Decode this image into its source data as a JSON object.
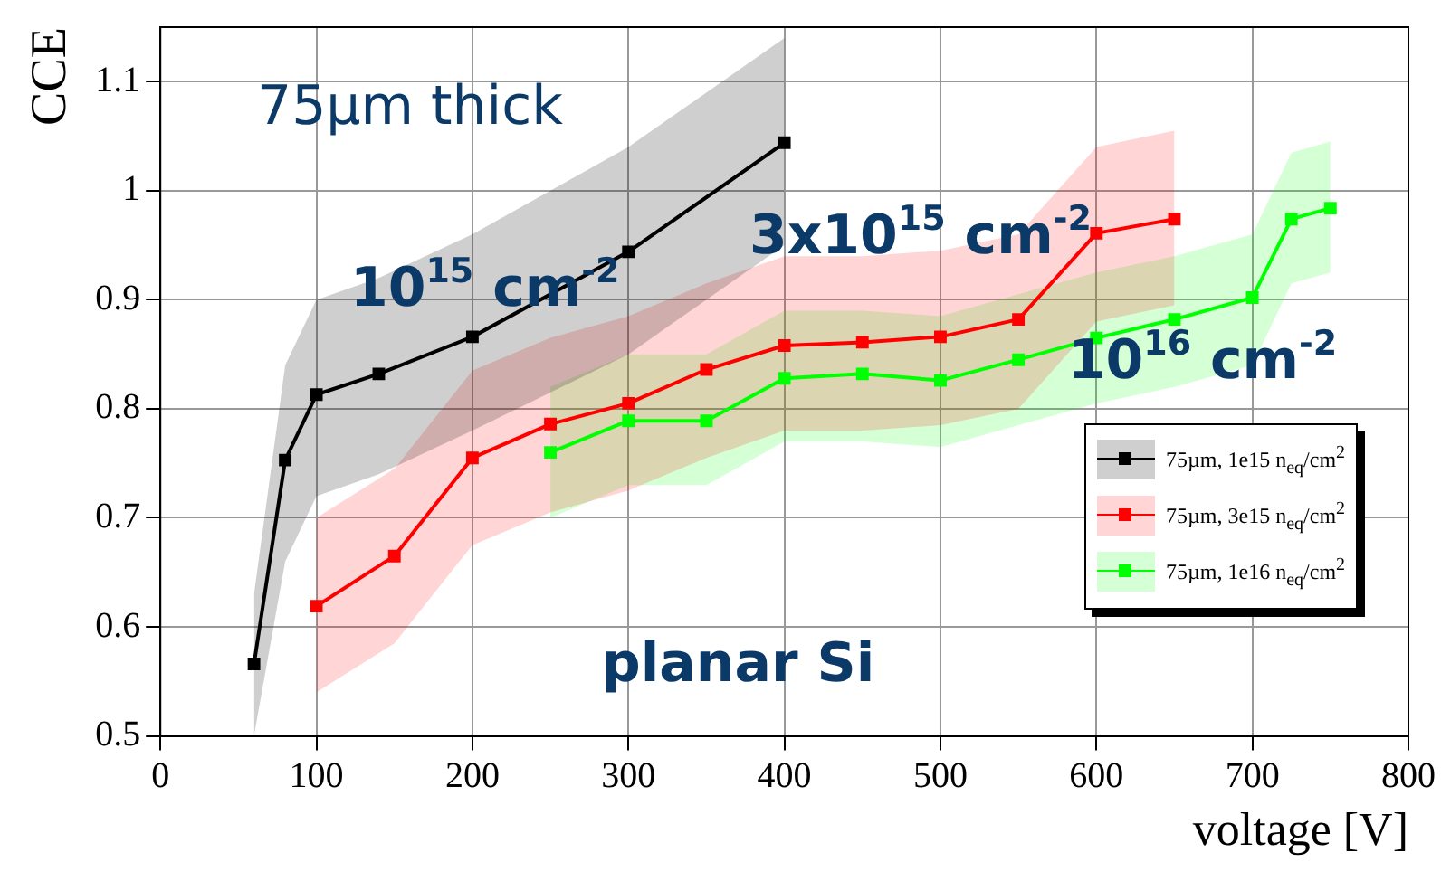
{
  "chart_data": {
    "type": "line",
    "xlabel": "voltage [V]",
    "ylabel": "CCE",
    "xlim": [
      0,
      800
    ],
    "xticks": [
      0,
      100,
      200,
      300,
      400,
      500,
      600,
      700,
      800
    ],
    "ylim": [
      0.5,
      1.15
    ],
    "yticks": [
      0.5,
      0.6,
      0.7,
      0.8,
      0.9,
      1,
      1.1
    ],
    "grid": true,
    "legend": "bottom right",
    "marker": "square",
    "line_style": "solid",
    "series": [
      {
        "name": "75µm, 1e15 n$_{eq}$/cm$^{2}$",
        "color": "#000000",
        "x": [
          60,
          80,
          100,
          140,
          200,
          300,
          400
        ],
        "values": [
          0.566,
          0.753,
          0.813,
          0.832,
          0.866,
          0.944,
          1.044
        ],
        "lower": [
          0.5,
          0.66,
          0.72,
          0.74,
          0.78,
          0.85,
          0.95
        ],
        "upper": [
          0.63,
          0.84,
          0.9,
          0.92,
          0.96,
          1.04,
          1.14
        ]
      },
      {
        "name": "75µm, 3e15 n$_{eq}$/cm$^{2}$",
        "color": "#ff0000",
        "x": [
          100,
          150,
          200,
          250,
          300,
          350,
          400,
          450,
          500,
          550,
          600,
          650
        ],
        "values": [
          0.619,
          0.665,
          0.755,
          0.786,
          0.805,
          0.836,
          0.858,
          0.861,
          0.866,
          0.882,
          0.961,
          0.974
        ],
        "lower": [
          0.54,
          0.585,
          0.675,
          0.705,
          0.725,
          0.755,
          0.78,
          0.78,
          0.785,
          0.8,
          0.88,
          0.895
        ],
        "upper": [
          0.7,
          0.745,
          0.835,
          0.865,
          0.885,
          0.915,
          0.94,
          0.94,
          0.945,
          0.96,
          1.04,
          1.055
        ]
      },
      {
        "name": "75µm, 1e16 n$_{eq}$/cm$^{2}$",
        "color": "#00ff00",
        "x": [
          250,
          300,
          350,
          400,
          450,
          500,
          550,
          600,
          650,
          700,
          725,
          750
        ],
        "values": [
          0.76,
          0.789,
          0.789,
          0.828,
          0.832,
          0.826,
          0.845,
          0.865,
          0.882,
          0.902,
          0.974,
          0.984
        ],
        "lower": [
          0.7,
          0.73,
          0.73,
          0.77,
          0.77,
          0.765,
          0.785,
          0.805,
          0.82,
          0.84,
          0.915,
          0.925
        ],
        "upper": [
          0.82,
          0.85,
          0.85,
          0.89,
          0.89,
          0.885,
          0.905,
          0.925,
          0.94,
          0.96,
          1.035,
          1.045
        ]
      }
    ],
    "annotations": [
      "75µm thick",
      "10$^{15}$ cm$^{-2}$",
      "3x10$^{15}$ cm$^{-2}$",
      "10$^{16}$ cm$^{-2}$",
      "planar Si"
    ]
  }
}
